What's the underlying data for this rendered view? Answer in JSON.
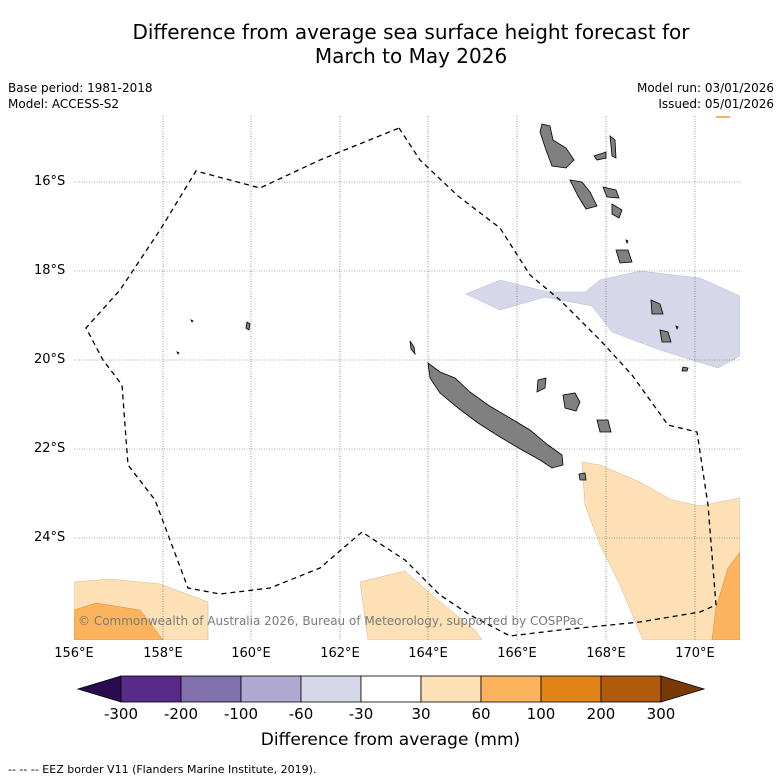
{
  "title_line1": "Difference from average sea surface height forecast for",
  "title_line2": "March to May 2026",
  "meta": {
    "base_period": "Base period: 1981-2018",
    "model": "Model: ACCESS-S2",
    "model_run": "Model run: 03/01/2026",
    "issued": "Issued: 05/01/2026"
  },
  "map": {
    "latitudes": [
      "16°S",
      "18°S",
      "20°S",
      "22°S",
      "24°S"
    ],
    "longitudes": [
      "156°E",
      "158°E",
      "160°E",
      "162°E",
      "164°E",
      "166°E",
      "168°E",
      "170°E"
    ],
    "copyright": "© Commonwealth of Australia 2026, Bureau of Meteorology, supported by COSPPac",
    "land_color": "#808080",
    "border_style": "dashed"
  },
  "colorbar": {
    "title": "Difference from average (mm)",
    "labels": [
      "-300",
      "-200",
      "-100",
      "-60",
      "-30",
      "30",
      "60",
      "100",
      "200",
      "300"
    ],
    "colors": [
      "#2b0b4f",
      "#5a2a8a",
      "#8070ad",
      "#b0a9d1",
      "#d7d7ea",
      "#ffffff",
      "#fde0b6",
      "#fcb35d",
      "#e08418",
      "#b05a0c",
      "#7a3a08"
    ]
  },
  "footnote": "--  --  -- EEZ border V11 (Flanders Marine Institute, 2019)."
}
